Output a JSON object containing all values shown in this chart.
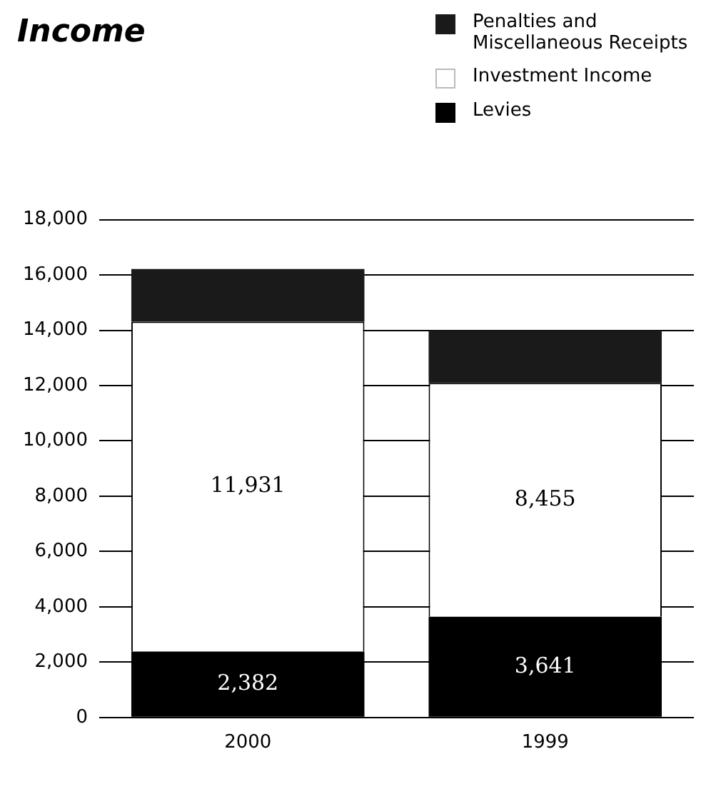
{
  "chart_data": {
    "type": "bar",
    "title": "Income",
    "categories": [
      "2000",
      "1999"
    ],
    "stacked": true,
    "legend": "top right",
    "grid": "y",
    "ylim": [
      0,
      18000
    ],
    "yticks": [
      {
        "value": 0,
        "label": "0"
      },
      {
        "value": 2000,
        "label": "2,000"
      },
      {
        "value": 4000,
        "label": "4,000"
      },
      {
        "value": 6000,
        "label": "6,000"
      },
      {
        "value": 8000,
        "label": "8,000"
      },
      {
        "value": 10000,
        "label": "10,000"
      },
      {
        "value": 12000,
        "label": "12,000"
      },
      {
        "value": 14000,
        "label": "14,000"
      },
      {
        "value": 16000,
        "label": "16,000"
      },
      {
        "value": 18000,
        "label": "18,000"
      }
    ],
    "series": [
      {
        "name": "Levies",
        "color": "#000000",
        "values": [
          2382,
          3641
        ],
        "value_labels": [
          "2,382",
          "3,641"
        ]
      },
      {
        "name": "Investment Income",
        "color": "#ffffff",
        "values": [
          11931,
          8455
        ],
        "value_labels": [
          "11,931",
          "8,455"
        ]
      },
      {
        "name": "Penalties and Miscellaneous Receipts",
        "color": "#1a1a1a",
        "values": [
          1900,
          1900
        ]
      }
    ]
  }
}
